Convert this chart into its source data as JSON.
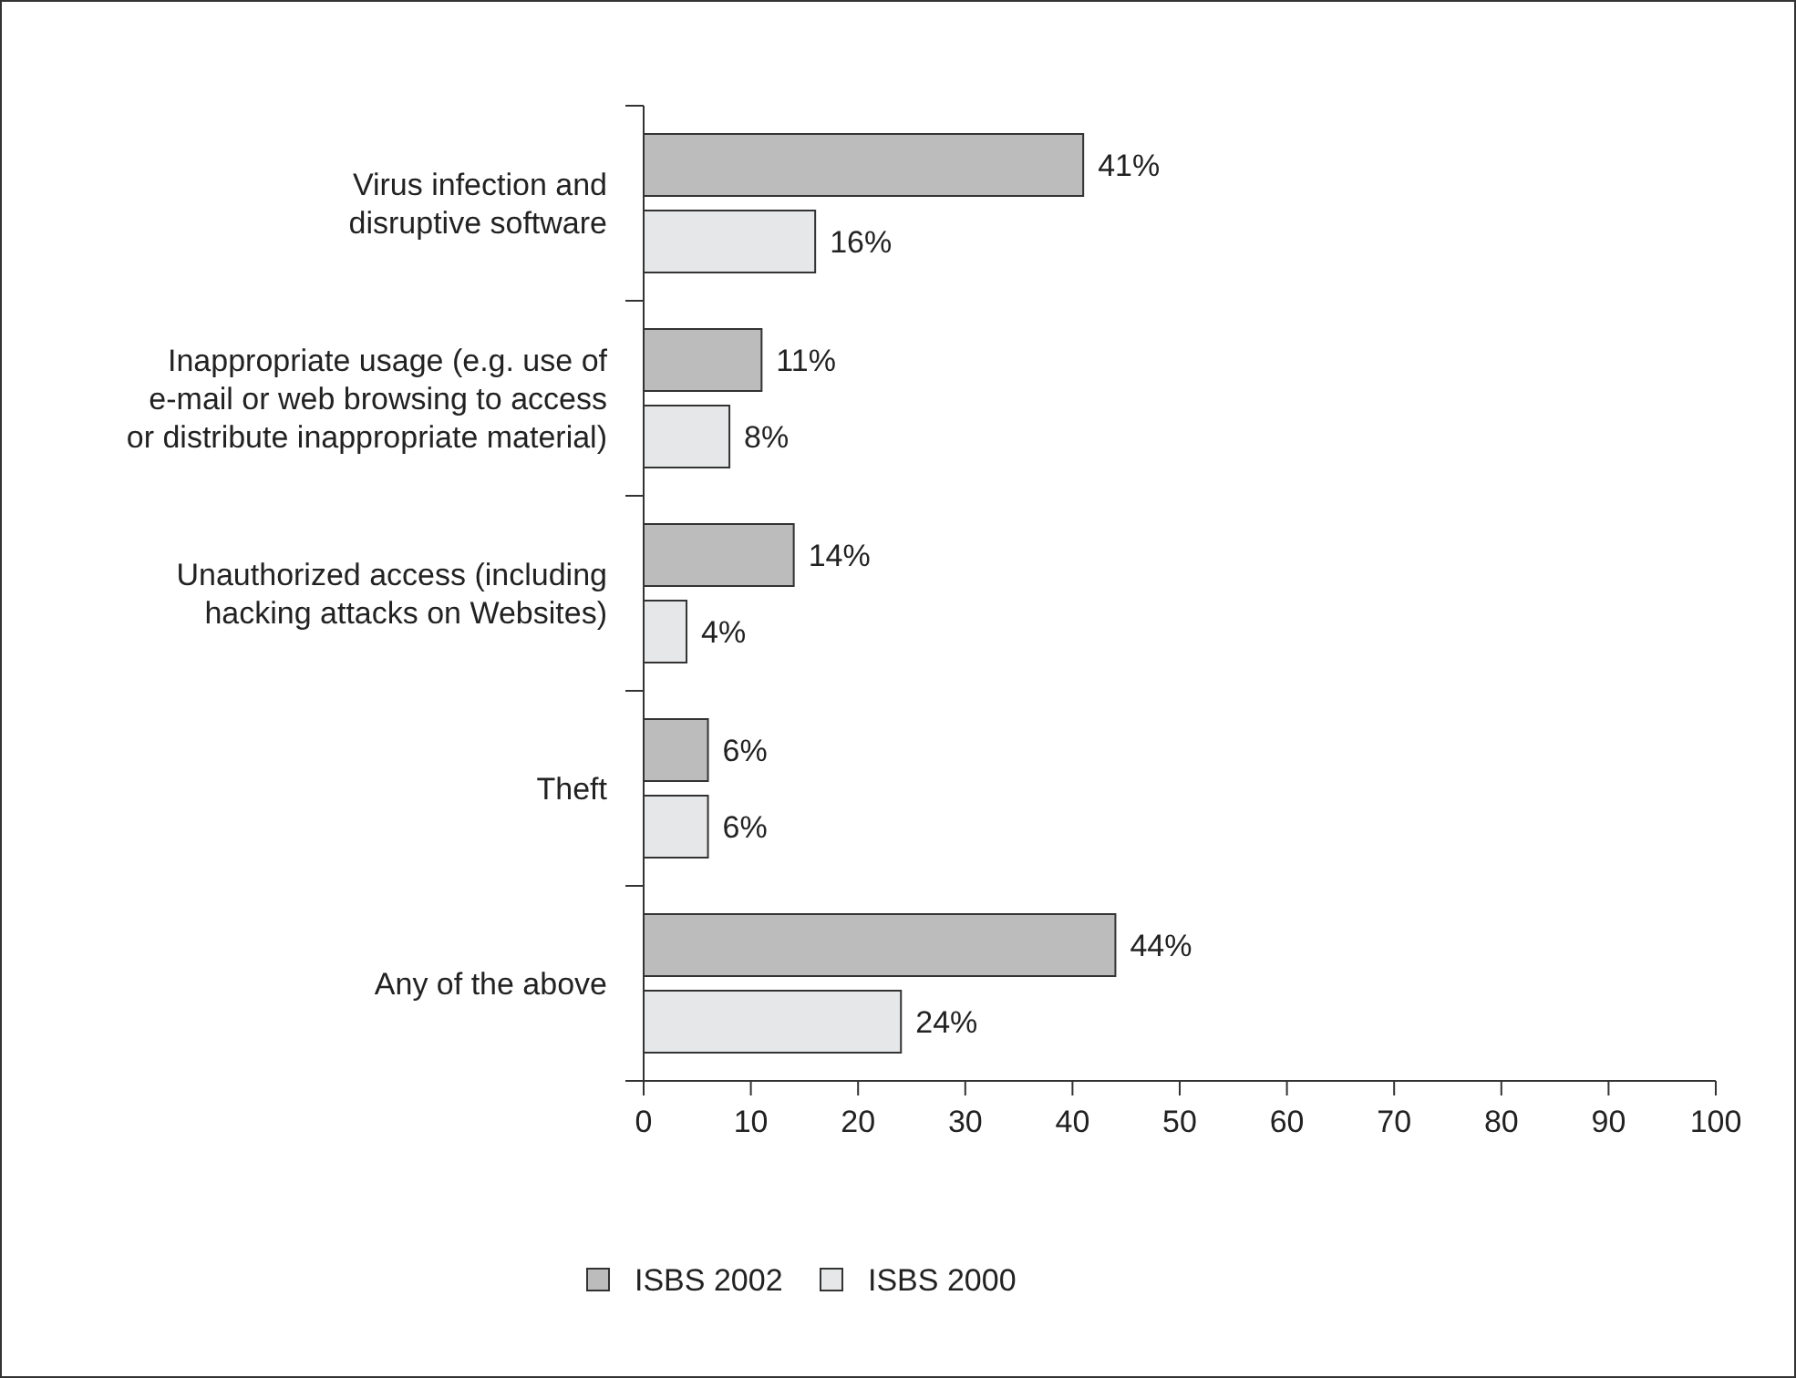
{
  "chart_data": {
    "type": "bar",
    "orientation": "horizontal",
    "categories": [
      "Virus infection and\ndisruptive software",
      "Inappropriate usage (e.g. use of\ne-mail or web browsing to access\nor distribute inappropriate material)",
      "Unauthorized access (including\nhacking attacks on Websites)",
      "Theft",
      "Any of the above"
    ],
    "series": [
      {
        "name": "ISBS 2002",
        "color": "#bcbcbc",
        "values": [
          41,
          11,
          14,
          6,
          44
        ],
        "value_labels": [
          "41%",
          "11%",
          "14%",
          "6%",
          "44%"
        ]
      },
      {
        "name": "ISBS 2000",
        "color": "#e6e7e8",
        "values": [
          16,
          8,
          4,
          6,
          24
        ],
        "value_labels": [
          "16%",
          "8%",
          "4%",
          "6%",
          "24%"
        ]
      }
    ],
    "xlim": [
      0,
      100
    ],
    "xticks": [
      0,
      10,
      20,
      30,
      40,
      50,
      60,
      70,
      80,
      90,
      100
    ],
    "grid": false,
    "legend": "bottom"
  }
}
